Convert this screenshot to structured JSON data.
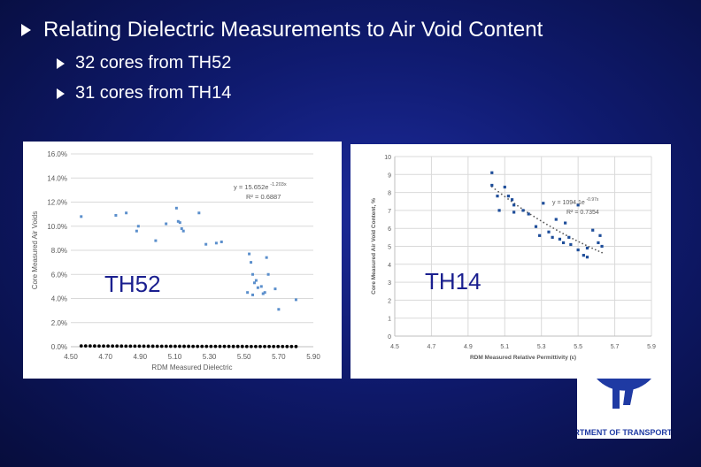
{
  "slide": {
    "title": "Relating Dielectric Measurements to Air Void Content",
    "bullets": [
      "32 cores from TH52",
      "31 cores from TH14"
    ]
  },
  "logo": {
    "text": "EPARTMENT OF TRANSPORTATIO"
  },
  "colors": {
    "background": "#0f1a6e",
    "text": "#ffffff",
    "overlay_label": "#1a1f8f",
    "trendline": "#000000",
    "points_left": "#5b8fcc",
    "points_right": "#1f4e9a"
  },
  "chart_data": [
    {
      "type": "scatter",
      "overlay_label": "TH52",
      "xlabel": "RDM Measured Dielectric",
      "ylabel": "Core Measured Air Voids",
      "xlim": [
        4.5,
        5.9
      ],
      "ylim": [
        0.0,
        16.0
      ],
      "x_ticks": [
        "4.50",
        "4.70",
        "4.90",
        "5.10",
        "5.30",
        "5.50",
        "5.70",
        "5.90"
      ],
      "y_ticks": [
        "0.0%",
        "2.0%",
        "4.0%",
        "6.0%",
        "8.0%",
        "10.0%",
        "12.0%",
        "14.0%",
        "16.0%"
      ],
      "grid": true,
      "annotation": {
        "equation": "y = 15.652e",
        "exponent": "-1.203x",
        "r2": "R² = 0.6887"
      },
      "points": [
        [
          4.56,
          10.8
        ],
        [
          4.76,
          10.9
        ],
        [
          4.82,
          11.1
        ],
        [
          4.88,
          9.6
        ],
        [
          4.89,
          10.0
        ],
        [
          4.99,
          8.8
        ],
        [
          5.05,
          10.2
        ],
        [
          5.11,
          11.5
        ],
        [
          5.12,
          10.4
        ],
        [
          5.13,
          10.3
        ],
        [
          5.14,
          9.8
        ],
        [
          5.15,
          9.6
        ],
        [
          5.24,
          11.1
        ],
        [
          5.28,
          8.5
        ],
        [
          5.34,
          8.6
        ],
        [
          5.37,
          8.7
        ],
        [
          5.52,
          4.5
        ],
        [
          5.53,
          7.7
        ],
        [
          5.54,
          7.0
        ],
        [
          5.55,
          6.0
        ],
        [
          5.56,
          5.3
        ],
        [
          5.57,
          5.5
        ],
        [
          5.58,
          4.9
        ],
        [
          5.6,
          5.0
        ],
        [
          5.61,
          4.4
        ],
        [
          5.62,
          4.5
        ],
        [
          5.63,
          7.4
        ],
        [
          5.64,
          6.0
        ],
        [
          5.68,
          4.8
        ],
        [
          5.7,
          3.1
        ],
        [
          5.8,
          3.9
        ],
        [
          5.55,
          4.3
        ]
      ],
      "trendline": {
        "a": 15.652,
        "b": -1.203,
        "x_from": 4.56,
        "x_to": 5.8
      }
    },
    {
      "type": "scatter",
      "overlay_label": "TH14",
      "xlabel": "RDM Measured Relative Permittivity (ε)",
      "ylabel": "Core Measured Air Void Content, %",
      "xlim": [
        4.5,
        5.9
      ],
      "ylim": [
        0,
        10
      ],
      "x_ticks": [
        "4.5",
        "4.7",
        "4.9",
        "5.1",
        "5.3",
        "5.5",
        "5.7",
        "5.9"
      ],
      "y_ticks": [
        "0",
        "1",
        "2",
        "3",
        "4",
        "5",
        "6",
        "7",
        "8",
        "9",
        "10"
      ],
      "grid": true,
      "annotation": {
        "equation": "y = 1094.1e",
        "exponent": "-0.97x",
        "r2": "R² = 0.7354"
      },
      "points": [
        [
          5.03,
          9.1
        ],
        [
          5.03,
          8.4
        ],
        [
          5.06,
          7.8
        ],
        [
          5.07,
          7.0
        ],
        [
          5.1,
          8.3
        ],
        [
          5.12,
          7.8
        ],
        [
          5.14,
          7.6
        ],
        [
          5.15,
          7.3
        ],
        [
          5.15,
          6.9
        ],
        [
          5.2,
          7.0
        ],
        [
          5.23,
          6.8
        ],
        [
          5.27,
          6.1
        ],
        [
          5.29,
          5.6
        ],
        [
          5.31,
          7.4
        ],
        [
          5.34,
          5.8
        ],
        [
          5.36,
          5.5
        ],
        [
          5.38,
          6.5
        ],
        [
          5.4,
          5.4
        ],
        [
          5.42,
          5.2
        ],
        [
          5.43,
          6.3
        ],
        [
          5.46,
          5.1
        ],
        [
          5.5,
          7.3
        ],
        [
          5.5,
          4.8
        ],
        [
          5.53,
          4.5
        ],
        [
          5.55,
          4.4
        ],
        [
          5.55,
          4.9
        ],
        [
          5.58,
          5.9
        ],
        [
          5.61,
          5.2
        ],
        [
          5.62,
          5.6
        ],
        [
          5.63,
          5.0
        ],
        [
          5.45,
          5.5
        ]
      ],
      "trendline": {
        "a": 1094.1,
        "b": -0.97,
        "x_from": 5.03,
        "x_to": 5.63
      }
    }
  ]
}
